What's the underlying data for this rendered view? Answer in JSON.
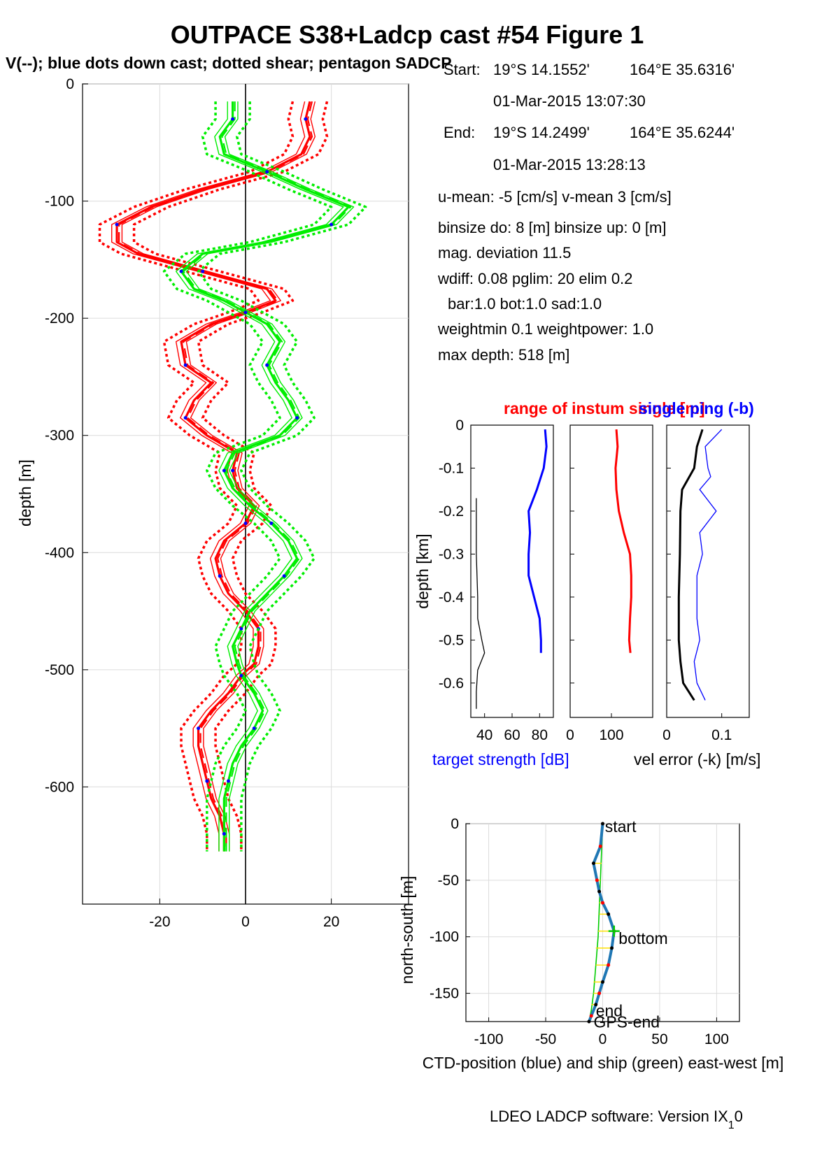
{
  "title": "OUTPACE S38+Ladcp cast #54  Figure 1",
  "subtitle": "V(--); blue dots down cast; dotted shear; pentagon SADCP",
  "info": {
    "start_label": "Start:",
    "start_lat": "19°S 14.1552'",
    "start_lon": "164°E 35.6316'",
    "start_time": "01-Mar-2015 13:07:30",
    "end_label": "End:",
    "end_lat": "19°S 14.2499'",
    "end_lon": "164°E 35.6244'",
    "end_time": "01-Mar-2015 13:28:13",
    "means": "u-mean:  -5 [cm/s]    v-mean   3 [cm/s]",
    "binsize": "binsize do: 8 [m]  binsize up:  0 [m]",
    "magdev": "mag. deviation 11.5",
    "wdiff": "wdiff: 0.08  pglim: 20  elim 0.2",
    "weights": "bar:1.0 bot:1.0 sad:1.0",
    "weightmin": "weightmin 0.1  weightpower: 1.0",
    "maxdepth": "max depth: 518 [m]"
  },
  "footer": {
    "text": "LDEO LADCP software: Version IX",
    "sub": "1",
    "tail": "0"
  },
  "colors": {
    "u": "#ff0000",
    "v": "#00ee00",
    "dots": "#0000ff",
    "ctd": "#1f77b4",
    "ship": "#00cc00"
  },
  "chart_data": [
    {
      "id": "profile",
      "type": "line",
      "xlim": [
        -38,
        38
      ],
      "ylim": [
        -700,
        0
      ],
      "xticks": [
        -20,
        0,
        20
      ],
      "yticks": [
        0,
        -100,
        -200,
        -300,
        -400,
        -500,
        -600
      ],
      "xtick_labels": [
        "-20",
        "0",
        "20"
      ],
      "ytick_labels": [
        "0",
        "-100",
        "-200",
        "-300",
        "-400",
        "-500",
        "-600"
      ],
      "ylabel": "depth [m]",
      "grid": true,
      "series": [
        {
          "color": "red",
          "depth": [
            -15,
            -30,
            -45,
            -60,
            -75,
            -90,
            -105,
            -120,
            -135,
            -145,
            -160,
            -175,
            -185,
            -195,
            -205,
            -220,
            -240,
            -255,
            -270,
            -285,
            -300,
            -315,
            -330,
            -345,
            -360,
            -375,
            -390,
            -405,
            -420,
            -435,
            -450,
            -465,
            -480,
            -495,
            -505,
            -520,
            -535,
            -550,
            -565,
            -580,
            -595,
            -610,
            -625,
            -640,
            -655
          ],
          "values": [
            15,
            14,
            15,
            13,
            5,
            -10,
            -22,
            -30,
            -30,
            -25,
            -10,
            5,
            7,
            0,
            -8,
            -15,
            -14,
            -8,
            -12,
            -14,
            -9,
            -2,
            -3,
            -2,
            2,
            0,
            -5,
            -7,
            -6,
            -4,
            0,
            3,
            3,
            2,
            -1,
            -4,
            -8,
            -11,
            -11,
            -10,
            -9,
            -8,
            -6,
            -5,
            -5
          ]
        },
        {
          "color": "green",
          "depth": [
            -15,
            -30,
            -45,
            -60,
            -75,
            -90,
            -105,
            -120,
            -135,
            -145,
            -160,
            -175,
            -185,
            -195,
            -205,
            -220,
            -240,
            -255,
            -270,
            -285,
            -300,
            -315,
            -330,
            -345,
            -360,
            -375,
            -390,
            -405,
            -420,
            -435,
            -450,
            -465,
            -480,
            -495,
            -505,
            -520,
            -535,
            -550,
            -565,
            -580,
            -595,
            -610,
            -625,
            -640,
            -655
          ],
          "values": [
            -3,
            -3,
            -6,
            -5,
            5,
            14,
            24,
            20,
            5,
            -10,
            -15,
            -12,
            -5,
            0,
            5,
            8,
            5,
            7,
            10,
            12,
            8,
            -3,
            -5,
            -3,
            1,
            6,
            10,
            12,
            9,
            5,
            1,
            -1,
            -3,
            -2,
            -1,
            2,
            4,
            2,
            -1,
            -3,
            -4,
            -5,
            -5,
            -5,
            -5
          ]
        }
      ]
    },
    {
      "id": "target-strength",
      "type": "line",
      "title": "range of instum single [m]",
      "title_suffix": "single ping (-b)",
      "xticks": [
        40,
        60,
        80
      ],
      "xtick_labels": [
        "40",
        "60",
        "80"
      ],
      "xlim": [
        30,
        90
      ],
      "ylim": [
        -0.68,
        0
      ],
      "yticks": [
        0,
        -0.1,
        -0.2,
        -0.3,
        -0.4,
        -0.5,
        -0.6
      ],
      "ytick_labels": [
        "0",
        "-0.1",
        "-0.2",
        "-0.3",
        "-0.4",
        "-0.5",
        "-0.6"
      ],
      "ylabel": "depth [km]",
      "xlabel": "target strength [dB]",
      "series": [
        {
          "color": "blue",
          "depth": [
            -0.01,
            -0.05,
            -0.1,
            -0.15,
            -0.2,
            -0.25,
            -0.3,
            -0.35,
            -0.4,
            -0.45,
            -0.5,
            -0.53
          ],
          "values": [
            84,
            85,
            83,
            78,
            72,
            73,
            72,
            72,
            76,
            80,
            81,
            81
          ]
        },
        {
          "color": "black",
          "depth": [
            -0.17,
            -0.2,
            -0.3,
            -0.4,
            -0.45,
            -0.5,
            -0.53,
            -0.57,
            -0.62,
            -0.66
          ],
          "values": [
            34,
            34,
            34,
            35,
            35,
            38,
            40,
            35,
            34,
            34
          ]
        }
      ]
    },
    {
      "id": "range",
      "type": "line",
      "xticks": [
        0,
        100
      ],
      "xtick_labels": [
        "0",
        "100"
      ],
      "xlim": [
        0,
        200
      ],
      "ylim": [
        -0.68,
        0
      ],
      "series": [
        {
          "color": "red",
          "depth": [
            -0.01,
            -0.05,
            -0.1,
            -0.15,
            -0.2,
            -0.25,
            -0.3,
            -0.35,
            -0.4,
            -0.45,
            -0.5,
            -0.53
          ],
          "values": [
            112,
            115,
            110,
            112,
            118,
            130,
            145,
            148,
            148,
            145,
            143,
            146
          ]
        }
      ]
    },
    {
      "id": "vel-error",
      "type": "line",
      "xticks": [
        0,
        0.1
      ],
      "xtick_labels": [
        "0",
        "0.1"
      ],
      "xlim": [
        0,
        0.15
      ],
      "ylim": [
        -0.68,
        0
      ],
      "xlabel": "vel error (-k) [m/s]",
      "series": [
        {
          "color": "black",
          "depth": [
            -0.01,
            -0.05,
            -0.1,
            -0.15,
            -0.2,
            -0.3,
            -0.4,
            -0.5,
            -0.55,
            -0.6,
            -0.64
          ],
          "values": [
            0.065,
            0.055,
            0.05,
            0.028,
            0.025,
            0.024,
            0.022,
            0.022,
            0.025,
            0.03,
            0.05
          ]
        },
        {
          "color": "blue",
          "depth": [
            -0.01,
            -0.05,
            -0.1,
            -0.12,
            -0.15,
            -0.2,
            -0.25,
            -0.3,
            -0.35,
            -0.4,
            -0.45,
            -0.5,
            -0.55,
            -0.6,
            -0.64
          ],
          "values": [
            0.1,
            0.07,
            0.075,
            0.08,
            0.06,
            0.09,
            0.06,
            0.065,
            0.055,
            0.055,
            0.055,
            0.06,
            0.05,
            0.055,
            0.07
          ]
        }
      ]
    },
    {
      "id": "track",
      "type": "line",
      "xlim": [
        -120,
        120
      ],
      "ylim": [
        -175,
        0
      ],
      "xticks": [
        -100,
        -50,
        0,
        50,
        100
      ],
      "xtick_labels": [
        "-100",
        "-50",
        "0",
        "50",
        "100"
      ],
      "yticks": [
        0,
        -50,
        -100,
        -150
      ],
      "ytick_labels": [
        "0",
        "-50",
        "-100",
        "-150"
      ],
      "xlabel": "CTD-position (blue) and ship (green) east-west [m]",
      "ylabel": "north-south [m]",
      "grid": true,
      "ctd": {
        "x": [
          0,
          -2,
          -8,
          -5,
          -3,
          0,
          5,
          10,
          8,
          5,
          0,
          -3,
          -6,
          -10,
          -12
        ],
        "y": [
          0,
          -20,
          -35,
          -50,
          -60,
          -70,
          -80,
          -95,
          -110,
          -125,
          -140,
          -150,
          -160,
          -170,
          -175
        ]
      },
      "ship": {
        "x": [
          0,
          -1,
          -2,
          -3,
          -4,
          -6,
          -8,
          -10,
          -12
        ],
        "y": [
          0,
          -25,
          -50,
          -75,
          -100,
          -125,
          -150,
          -165,
          -175
        ]
      },
      "annotations": [
        {
          "text": "start",
          "x": 2,
          "y": -3
        },
        {
          "text": "bottom",
          "x": 14,
          "y": -102
        },
        {
          "text": "end",
          "x": -6,
          "y": -166
        },
        {
          "text": "GPS-end",
          "x": -8,
          "y": -176
        }
      ]
    }
  ]
}
